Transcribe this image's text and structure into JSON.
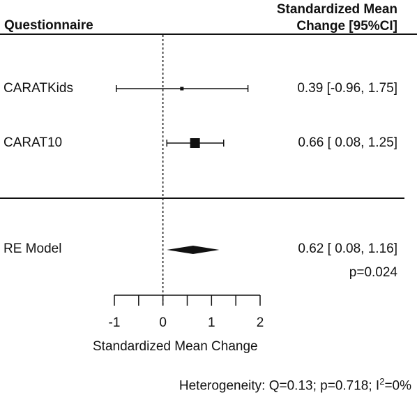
{
  "header": {
    "left": "Questionnaire",
    "right_line1": "Standardized Mean",
    "right_line2": "Change [95%CI]"
  },
  "rows": [
    {
      "label": "CARATKids",
      "est": 0.39,
      "lo": -0.96,
      "hi": 1.75,
      "text": "0.39 [-0.96, 1.75]",
      "weight": "small"
    },
    {
      "label": "CARAT10",
      "est": 0.66,
      "lo": 0.08,
      "hi": 1.25,
      "text": "0.66 [ 0.08, 1.25]",
      "weight": "large"
    }
  ],
  "summary": {
    "label": "RE Model",
    "est": 0.62,
    "lo": 0.08,
    "hi": 1.16,
    "text": "0.62 [ 0.08, 1.16]",
    "p": "p=0.024"
  },
  "footer": {
    "hetero_prefix": "Heterogeneity:  Q=0.13; p=0.718; I",
    "hetero_sup": "2",
    "hetero_suffix": "=0%"
  },
  "chart_data": {
    "type": "forest",
    "xlabel": "Standardized Mean Change",
    "xlim": [
      -1,
      2
    ],
    "xticks": [
      -1,
      0,
      1,
      2
    ],
    "xminor": [
      -0.5,
      0.5,
      1.5
    ],
    "reference_line": 0,
    "studies": [
      {
        "name": "CARATKids",
        "estimate": 0.39,
        "ci": [
          -0.96,
          1.75
        ]
      },
      {
        "name": "CARAT10",
        "estimate": 0.66,
        "ci": [
          0.08,
          1.25
        ]
      }
    ],
    "pooled": {
      "name": "RE Model",
      "estimate": 0.62,
      "ci": [
        0.08,
        1.16
      ],
      "p": 0.024
    },
    "heterogeneity": {
      "Q": 0.13,
      "p": 0.718,
      "I2": "0%"
    }
  }
}
